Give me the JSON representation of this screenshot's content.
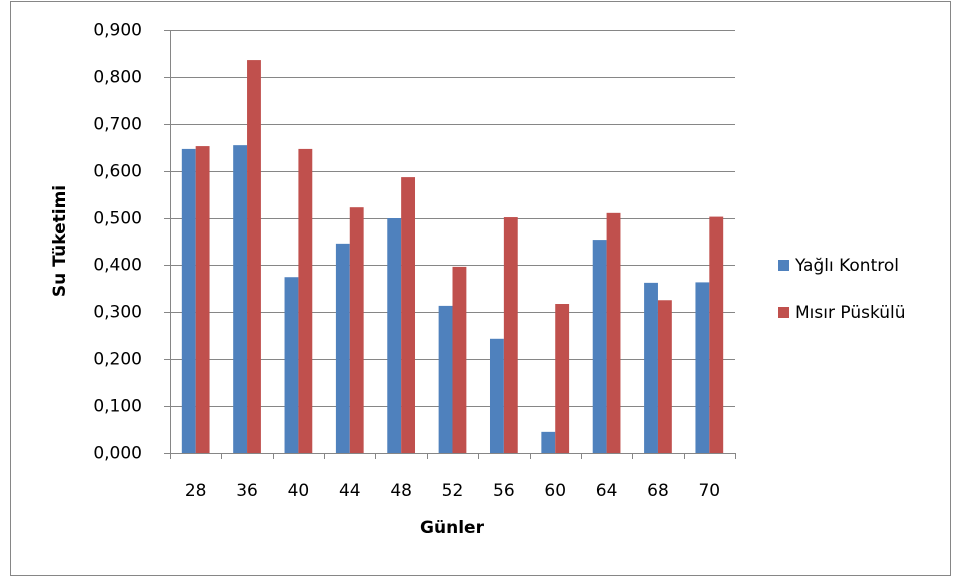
{
  "chart_data": {
    "type": "bar",
    "x_label": "Günler",
    "y_label": "Su Tüketimi",
    "categories": [
      "28",
      "36",
      "40",
      "44",
      "48",
      "52",
      "56",
      "60",
      "64",
      "68",
      "70"
    ],
    "series": [
      {
        "name": "Yağlı Kontrol",
        "color": "#4f81bd",
        "values": [
          0.647,
          0.655,
          0.374,
          0.445,
          0.5,
          0.313,
          0.243,
          0.045,
          0.453,
          0.362,
          0.363
        ]
      },
      {
        "name": "Mısır Püskülü",
        "color": "#c0504d",
        "values": [
          0.653,
          0.836,
          0.647,
          0.523,
          0.587,
          0.396,
          0.502,
          0.317,
          0.511,
          0.325,
          0.503
        ]
      }
    ],
    "ylim": [
      0,
      0.9
    ],
    "yticks": [
      {
        "value": 0,
        "label": "0,000"
      },
      {
        "value": 0.1,
        "label": "0,100"
      },
      {
        "value": 0.2,
        "label": "0,200"
      },
      {
        "value": 0.3,
        "label": "0,300"
      },
      {
        "value": 0.4,
        "label": "0,400"
      },
      {
        "value": 0.5,
        "label": "0,500"
      },
      {
        "value": 0.6,
        "label": "0,600"
      },
      {
        "value": 0.7,
        "label": "0,700"
      },
      {
        "value": 0.8,
        "label": "0,800"
      },
      {
        "value": 0.9,
        "label": "0,900"
      }
    ],
    "grid": true,
    "legend": "right"
  }
}
